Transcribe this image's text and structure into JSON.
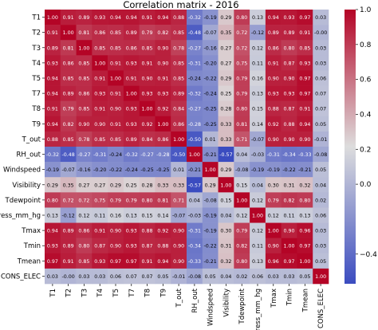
{
  "chart_data": {
    "type": "heatmap",
    "title": "Correlation matrix - 2016",
    "labels": [
      "T1",
      "T2",
      "T3",
      "T4",
      "T5",
      "T7",
      "T8",
      "T9",
      "T_out",
      "RH_out",
      "Windspeed",
      "Visibility",
      "Tdewpoint",
      "Press_mm_hg",
      "Tmax",
      "Tmin",
      "Tmean",
      "CONS_ELEC"
    ],
    "values": [
      [
        1.0,
        0.91,
        0.89,
        0.93,
        0.94,
        0.94,
        0.91,
        0.94,
        0.88,
        -0.32,
        -0.19,
        0.29,
        0.8,
        0.13,
        0.94,
        0.93,
        0.97,
        0.03
      ],
      [
        0.91,
        1.0,
        0.81,
        0.86,
        0.85,
        0.89,
        0.79,
        0.82,
        0.85,
        -0.48,
        -0.07,
        0.35,
        0.72,
        -0.12,
        0.89,
        0.89,
        0.91,
        -0.0
      ],
      [
        0.89,
        0.81,
        1.0,
        0.85,
        0.85,
        0.86,
        0.85,
        0.9,
        0.78,
        -0.27,
        -0.16,
        0.27,
        0.72,
        0.12,
        0.86,
        0.8,
        0.85,
        0.03
      ],
      [
        0.93,
        0.86,
        0.85,
        1.0,
        0.91,
        0.93,
        0.91,
        0.9,
        0.85,
        -0.31,
        -0.2,
        0.27,
        0.75,
        0.11,
        0.91,
        0.87,
        0.93,
        0.03
      ],
      [
        0.94,
        0.85,
        0.85,
        0.91,
        1.0,
        0.91,
        0.9,
        0.91,
        0.85,
        -0.24,
        -0.22,
        0.29,
        0.79,
        0.16,
        0.9,
        0.9,
        0.97,
        0.06
      ],
      [
        0.94,
        0.89,
        0.86,
        0.93,
        0.91,
        1.0,
        0.93,
        0.93,
        0.89,
        -0.32,
        -0.24,
        0.25,
        0.79,
        0.13,
        0.93,
        0.93,
        0.97,
        0.07
      ],
      [
        0.91,
        0.79,
        0.85,
        0.91,
        0.9,
        0.93,
        1.0,
        0.92,
        0.84,
        -0.27,
        -0.25,
        0.28,
        0.8,
        0.15,
        0.88,
        0.87,
        0.91,
        0.07
      ],
      [
        0.94,
        0.82,
        0.9,
        0.9,
        0.91,
        0.93,
        0.92,
        1.0,
        0.86,
        -0.28,
        -0.25,
        0.33,
        0.81,
        0.14,
        0.92,
        0.88,
        0.94,
        0.05
      ],
      [
        0.88,
        0.85,
        0.78,
        0.85,
        0.85,
        0.89,
        0.84,
        0.86,
        1.0,
        -0.5,
        0.01,
        0.33,
        0.71,
        -0.07,
        0.9,
        0.9,
        0.9,
        -0.01
      ],
      [
        -0.32,
        -0.48,
        -0.27,
        -0.31,
        -0.24,
        -0.32,
        -0.27,
        -0.28,
        -0.5,
        1.0,
        -0.21,
        -0.57,
        0.04,
        -0.03,
        -0.31,
        -0.34,
        -0.33,
        -0.08
      ],
      [
        -0.19,
        -0.07,
        -0.16,
        -0.2,
        -0.22,
        -0.24,
        -0.25,
        -0.25,
        0.01,
        -0.21,
        1.0,
        0.29,
        -0.08,
        -0.19,
        -0.19,
        -0.22,
        -0.21,
        0.05
      ],
      [
        0.29,
        0.35,
        0.27,
        0.27,
        0.29,
        0.25,
        0.28,
        0.33,
        0.33,
        -0.57,
        0.29,
        1.0,
        0.15,
        0.04,
        0.3,
        0.31,
        0.32,
        0.04
      ],
      [
        0.8,
        0.72,
        0.72,
        0.75,
        0.79,
        0.79,
        0.8,
        0.81,
        0.71,
        0.04,
        -0.08,
        0.15,
        1.0,
        0.12,
        0.79,
        0.82,
        0.8,
        0.02
      ],
      [
        0.13,
        -0.12,
        0.12,
        0.11,
        0.16,
        0.13,
        0.15,
        0.14,
        -0.07,
        -0.03,
        -0.19,
        0.04,
        0.12,
        1.0,
        0.12,
        0.11,
        0.13,
        0.06
      ],
      [
        0.94,
        0.89,
        0.86,
        0.91,
        0.9,
        0.93,
        0.88,
        0.92,
        0.9,
        -0.31,
        -0.19,
        0.3,
        0.79,
        0.12,
        1.0,
        0.9,
        0.96,
        0.03
      ],
      [
        0.93,
        0.89,
        0.8,
        0.87,
        0.9,
        0.93,
        0.87,
        0.88,
        0.9,
        -0.34,
        -0.22,
        0.31,
        0.82,
        0.11,
        0.9,
        1.0,
        0.97,
        0.03
      ],
      [
        0.97,
        0.91,
        0.85,
        0.93,
        0.97,
        0.97,
        0.91,
        0.94,
        0.9,
        -0.33,
        -0.21,
        0.32,
        0.8,
        0.13,
        0.96,
        0.97,
        1.0,
        0.05
      ],
      [
        0.03,
        -0.0,
        0.03,
        0.03,
        0.06,
        0.07,
        0.07,
        0.05,
        -0.01,
        -0.08,
        0.05,
        0.04,
        0.02,
        0.06,
        0.03,
        0.03,
        0.05,
        1.0
      ]
    ],
    "vmin": -0.57,
    "vmax": 1.0,
    "colormap": "coolwarm",
    "colormap_stops": [
      "#3b4cc0",
      "#dddddd",
      "#b40426"
    ],
    "colorbar": {
      "ticks": [
        1.0,
        0.8,
        0.6,
        0.4,
        0.2,
        0.0,
        -0.4
      ],
      "tick_labels": [
        "1.0",
        "0.8",
        "0.6",
        "0.4",
        "0.2",
        "0.0",
        "−0.4"
      ]
    },
    "annotation_format": "2dp"
  }
}
